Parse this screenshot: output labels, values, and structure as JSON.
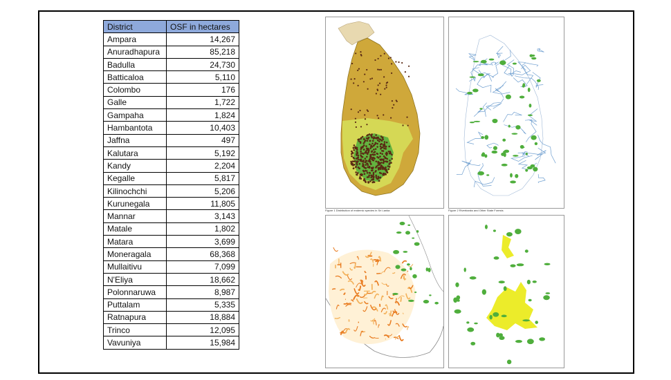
{
  "table": {
    "headers": {
      "district": "District",
      "osf": "OSF in hectares"
    },
    "rows": [
      {
        "district": " Ampara",
        "osf": "14,267"
      },
      {
        "district": "Anuradhapura",
        "osf": "85,218"
      },
      {
        "district": "Badulla",
        "osf": "24,730"
      },
      {
        "district": "Batticaloa",
        "osf": "5,110"
      },
      {
        "district": "Colombo",
        "osf": "176"
      },
      {
        "district": "Galle",
        "osf": "1,722"
      },
      {
        "district": "Gampaha",
        "osf": "1,824"
      },
      {
        "district": "Hambantota",
        "osf": "10,403"
      },
      {
        "district": "Jaffna",
        "osf": "497"
      },
      {
        "district": "Kalutara",
        "osf": "5,192"
      },
      {
        "district": "Kandy",
        "osf": "2,204"
      },
      {
        "district": "Kegalle",
        "osf": "5,817"
      },
      {
        "district": "Kilinochchi",
        "osf": "5,206"
      },
      {
        "district": "Kurunegala",
        "osf": "11,805"
      },
      {
        "district": "Mannar",
        "osf": "3,143"
      },
      {
        "district": "Matale",
        "osf": "1,802"
      },
      {
        "district": "Matara",
        "osf": "3,699"
      },
      {
        "district": "Moneragala",
        "osf": "68,368"
      },
      {
        "district": "Mullaitivu",
        "osf": "7,099"
      },
      {
        "district": "N'Eliya",
        "osf": "18,662"
      },
      {
        "district": "Polonnaruwa",
        "osf": "8,987"
      },
      {
        "district": "Puttalam",
        "osf": "5,335"
      },
      {
        "district": "Ratnapura",
        "osf": "18,884"
      },
      {
        "district": "Trinco",
        "osf": "12,095"
      },
      {
        "district": "Vavuniya",
        "osf": "15,984"
      }
    ]
  },
  "maps": {
    "captions": {
      "map1": "Figure 1 Distribution of endemic species in Sri Lanka",
      "map2": "Figure 2 Riverbanks and Other State Forests"
    },
    "colors": {
      "ochre": "#cfa83a",
      "lime": "#d6e05a",
      "forest_green": "#4fae3c",
      "river_blue": "#6f9fd0",
      "orange": "#e87a1e",
      "yellow": "#ecec2a",
      "dots": "#5a2a14"
    }
  }
}
